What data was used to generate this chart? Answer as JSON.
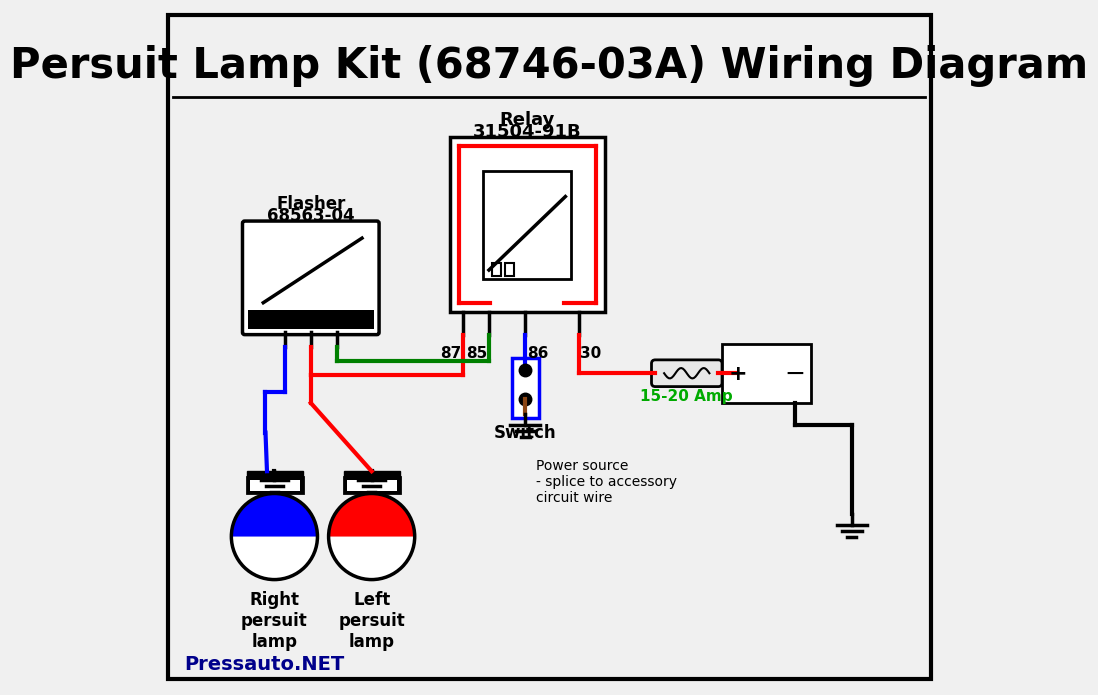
{
  "title": "Persuit Lamp Kit (68746-03A) Wiring Diagram",
  "title_fontsize": 30,
  "title_fontweight": "bold",
  "bg_color": "#f0f0f0",
  "border_color": "#000000",
  "watermark": "Pressauto.NET",
  "watermark_color": "#00008B",
  "relay_label_line1": "Relay",
  "relay_label_line2": "31504-91B",
  "flasher_label_line1": "Flasher",
  "flasher_label_line2": "68563-04",
  "fuse_label": "15-20 Amp",
  "fuse_color": "#00aa00",
  "power_label": "Power source\n- splice to accessory\ncircuit wire",
  "right_lamp_label": "Right\npersuit\nlamp",
  "left_lamp_label": "Left\npersuit\nlamp",
  "switch_label": "Switch"
}
